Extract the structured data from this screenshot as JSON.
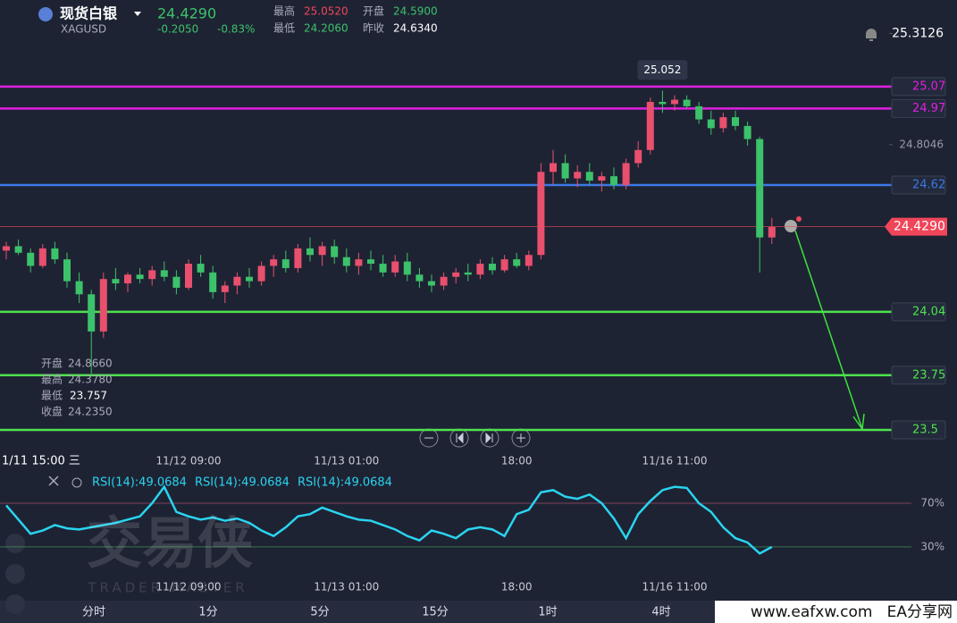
{
  "header": {
    "name": "现货白银",
    "code": "XAGUSD",
    "price": "24.4290",
    "change": "-0.2050",
    "change_pct": "-0.83%",
    "stats": [
      {
        "label": "最高",
        "value": "25.0520"
      },
      {
        "label": "开盘",
        "value": "24.5900"
      },
      {
        "label": "最低",
        "value": "24.2060"
      },
      {
        "label": "昨收",
        "value": "24.6340"
      }
    ]
  },
  "chart_data": [
    {
      "type": "candlestick",
      "corner_label": "1/11 15:00 三",
      "categories": [
        null,
        null,
        null,
        null,
        null,
        null,
        null,
        null,
        null,
        null,
        null,
        null,
        null,
        null,
        null,
        "11/12 09:00",
        null,
        null,
        null,
        null,
        null,
        null,
        null,
        null,
        null,
        null,
        null,
        null,
        "11/13 01:00",
        null,
        null,
        null,
        null,
        null,
        null,
        null,
        null,
        null,
        null,
        null,
        null,
        null,
        "18:00",
        null,
        null,
        null,
        null,
        null,
        null,
        null,
        null,
        null,
        null,
        null,
        null,
        "11/16 11:00",
        null,
        null,
        null,
        null,
        null,
        null,
        null,
        null
      ],
      "ohlc": [
        [
          24.32,
          24.36,
          24.28,
          24.34
        ],
        [
          24.34,
          24.37,
          24.3,
          24.31
        ],
        [
          24.31,
          24.33,
          24.22,
          24.25
        ],
        [
          24.25,
          24.35,
          24.24,
          24.33
        ],
        [
          24.33,
          24.36,
          24.26,
          24.28
        ],
        [
          24.28,
          24.31,
          24.15,
          24.18
        ],
        [
          24.18,
          24.22,
          24.08,
          24.12
        ],
        [
          24.12,
          24.14,
          23.757,
          23.95
        ],
        [
          23.95,
          24.22,
          23.92,
          24.19
        ],
        [
          24.19,
          24.24,
          24.14,
          24.17
        ],
        [
          24.17,
          24.22,
          24.13,
          24.21
        ],
        [
          24.21,
          24.24,
          24.17,
          24.19
        ],
        [
          24.19,
          24.25,
          24.16,
          24.23
        ],
        [
          24.23,
          24.27,
          24.18,
          24.2
        ],
        [
          24.2,
          24.23,
          24.12,
          24.15
        ],
        [
          24.15,
          24.28,
          24.14,
          24.26
        ],
        [
          24.26,
          24.3,
          24.2,
          24.22
        ],
        [
          24.22,
          24.25,
          24.1,
          24.13
        ],
        [
          24.13,
          24.18,
          24.08,
          24.16
        ],
        [
          24.16,
          24.22,
          24.12,
          24.2
        ],
        [
          24.2,
          24.24,
          24.15,
          24.18
        ],
        [
          24.18,
          24.27,
          24.16,
          24.25
        ],
        [
          24.25,
          24.3,
          24.2,
          24.28
        ],
        [
          24.28,
          24.32,
          24.22,
          24.24
        ],
        [
          24.24,
          24.35,
          24.22,
          24.33
        ],
        [
          24.33,
          24.38,
          24.27,
          24.3
        ],
        [
          24.3,
          24.36,
          24.25,
          24.34
        ],
        [
          24.34,
          24.37,
          24.26,
          24.29
        ],
        [
          24.29,
          24.33,
          24.22,
          24.25
        ],
        [
          24.25,
          24.31,
          24.21,
          24.28
        ],
        [
          24.28,
          24.32,
          24.23,
          24.26
        ],
        [
          24.26,
          24.3,
          24.2,
          24.22
        ],
        [
          24.22,
          24.3,
          24.2,
          24.27
        ],
        [
          24.27,
          24.31,
          24.18,
          24.21
        ],
        [
          24.21,
          24.24,
          24.15,
          24.18
        ],
        [
          24.18,
          24.21,
          24.13,
          24.16
        ],
        [
          24.16,
          24.22,
          24.14,
          24.2
        ],
        [
          24.2,
          24.24,
          24.17,
          24.22
        ],
        [
          24.22,
          24.26,
          24.18,
          24.21
        ],
        [
          24.21,
          24.28,
          24.19,
          24.26
        ],
        [
          24.26,
          24.29,
          24.21,
          24.23
        ],
        [
          24.23,
          24.3,
          24.22,
          24.28
        ],
        [
          24.28,
          24.31,
          24.24,
          24.25
        ],
        [
          24.25,
          24.32,
          24.23,
          24.3
        ],
        [
          24.3,
          24.72,
          24.28,
          24.68
        ],
        [
          24.68,
          24.78,
          24.62,
          24.72
        ],
        [
          24.72,
          24.76,
          24.63,
          24.65
        ],
        [
          24.65,
          24.71,
          24.61,
          24.68
        ],
        [
          24.68,
          24.72,
          24.62,
          24.64
        ],
        [
          24.64,
          24.68,
          24.59,
          24.66
        ],
        [
          24.66,
          24.7,
          24.6,
          24.62
        ],
        [
          24.62,
          24.74,
          24.6,
          24.72
        ],
        [
          24.72,
          24.82,
          24.7,
          24.78
        ],
        [
          24.78,
          25.02,
          24.76,
          25.0
        ],
        [
          25.0,
          25.052,
          24.95,
          24.99
        ],
        [
          24.99,
          25.03,
          24.96,
          25.01
        ],
        [
          25.01,
          25.03,
          24.97,
          24.98
        ],
        [
          24.98,
          25.0,
          24.9,
          24.92
        ],
        [
          24.92,
          24.96,
          24.85,
          24.88
        ],
        [
          24.88,
          24.95,
          24.86,
          24.93
        ],
        [
          24.93,
          24.96,
          24.87,
          24.89
        ],
        [
          24.89,
          24.91,
          24.8,
          24.83
        ],
        [
          24.83,
          24.84,
          24.22,
          24.38
        ],
        [
          24.38,
          24.47,
          24.35,
          24.429
        ]
      ],
      "up_color": "#e8506e",
      "down_color": "#3cc26a",
      "ylim": [
        23.463,
        25.466
      ],
      "yticks": [
        24.8046,
        25.3126
      ],
      "levels": [
        {
          "value": 25.07,
          "color": "#e020e0"
        },
        {
          "value": 24.97,
          "color": "#e020e0"
        },
        {
          "value": 24.62,
          "color": "#3b78e7"
        },
        {
          "value": 24.04,
          "color": "#4ee24e"
        },
        {
          "value": 23.75,
          "color": "#4ee24e"
        },
        {
          "value": 23.5,
          "color": "#4ee24e"
        }
      ],
      "last_price": {
        "value": 24.429,
        "label": "24.4290",
        "color": "#f0465a"
      },
      "high_label": 25.052,
      "low_label": 23.757,
      "info_panel": [
        {
          "label": "开盘",
          "value": "24.8660"
        },
        {
          "label": "最高",
          "value": "24.3780"
        },
        {
          "label": "最低"
        },
        {
          "label": "收盘",
          "value": "24.2350"
        }
      ]
    },
    {
      "type": "line",
      "legend": [
        "RSI(14):49.0684",
        "RSI(14):49.0684",
        "RSI(14):49.0684"
      ],
      "categories": [
        null,
        null,
        null,
        null,
        null,
        null,
        null,
        null,
        null,
        null,
        null,
        null,
        null,
        null,
        null,
        "11/12 09:00",
        null,
        null,
        null,
        null,
        null,
        null,
        null,
        null,
        null,
        null,
        null,
        null,
        "11/13 01:00",
        null,
        null,
        null,
        null,
        null,
        null,
        null,
        null,
        null,
        null,
        null,
        null,
        null,
        "18:00",
        null,
        null,
        null,
        null,
        null,
        null,
        null,
        null,
        null,
        null,
        null,
        null,
        "11/16 11:00",
        null,
        null,
        null,
        null,
        null,
        null,
        null,
        null
      ],
      "values": [
        68,
        55,
        42,
        45,
        50,
        47,
        46,
        48,
        50,
        52,
        55,
        58,
        70,
        85,
        62,
        58,
        55,
        57,
        54,
        56,
        52,
        45,
        40,
        48,
        58,
        60,
        66,
        62,
        58,
        55,
        54,
        50,
        46,
        40,
        36,
        45,
        42,
        38,
        46,
        48,
        46,
        40,
        60,
        64,
        80,
        82,
        76,
        74,
        78,
        70,
        56,
        38,
        60,
        72,
        82,
        85,
        84,
        70,
        62,
        48,
        38,
        34,
        24,
        30
      ],
      "color": "#29d4f0",
      "ylim": [
        7,
        97
      ],
      "yticks": [
        {
          "value": 70,
          "label": "70%"
        },
        {
          "value": 30,
          "label": "30%"
        }
      ]
    }
  ],
  "watermark": {
    "text": "交易侠",
    "sub": "TRADER MASTER"
  },
  "toolbar": [
    "分时",
    "1分",
    "5分",
    "15分",
    "1时",
    "4时"
  ],
  "footer": "www.eafxw.com   EA分享网"
}
